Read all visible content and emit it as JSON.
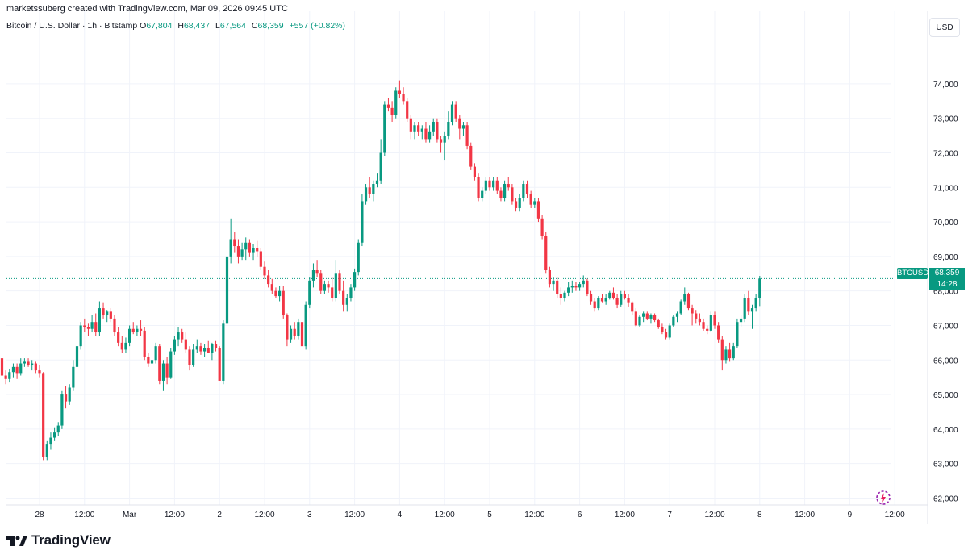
{
  "header": {
    "created_by": "marketssuberg created with TradingView.com, Mar 09, 2026 09:45 UTC"
  },
  "legend": {
    "instrument": "Bitcoin / U.S. Dollar · 1h · Bitstamp",
    "open_label": "O",
    "open": "67,804",
    "high_label": "H",
    "high": "68,437",
    "low_label": "L",
    "low": "67,564",
    "close_label": "C",
    "close": "68,359",
    "change": "+557 (+0.82%)"
  },
  "currency_button": "USD",
  "price_label": {
    "symbol": "BTCUSD",
    "price": "68,359",
    "countdown": "14:28"
  },
  "footer": {
    "brand": "TradingView"
  },
  "icons": {
    "logo": "tradingview-logo-icon",
    "replay": "replay-icon"
  },
  "colors": {
    "up": "#089981",
    "down": "#f23645",
    "grid": "#f0f3fa",
    "last_price_line": "#089981"
  },
  "chart_data": {
    "type": "candlestick",
    "ylim": [
      61800,
      75400
    ],
    "y_ticks": [
      62000,
      63000,
      64000,
      65000,
      66000,
      67000,
      68000,
      69000,
      70000,
      71000,
      72000,
      73000,
      74000
    ],
    "y_tick_labels": [
      "62,000",
      "63,000",
      "64,000",
      "65,000",
      "66,000",
      "67,000",
      "68,000",
      "69,000",
      "70,000",
      "71,000",
      "72,000",
      "73,000",
      "74,000"
    ],
    "x_ticks": [
      "28",
      "12:00",
      "Mar",
      "12:00",
      "2",
      "12:00",
      "3",
      "12:00",
      "4",
      "12:00",
      "5",
      "12:00",
      "6",
      "12:00",
      "7",
      "12:00",
      "8",
      "12:00",
      "9",
      "12:00"
    ],
    "x_tick_hours": [
      0,
      12,
      24,
      36,
      48,
      60,
      72,
      84,
      96,
      108,
      120,
      132,
      144,
      156,
      168,
      180,
      192,
      204,
      216,
      228
    ],
    "first_candle_hour": -11,
    "last_price": 68359,
    "candles": [
      [
        66300,
        66450,
        65950,
        66050
      ],
      [
        66050,
        66150,
        65450,
        65550
      ],
      [
        65550,
        65700,
        65300,
        65450
      ],
      [
        65450,
        65750,
        65350,
        65650
      ],
      [
        65650,
        65900,
        65500,
        65800
      ],
      [
        65800,
        65900,
        65450,
        65600
      ],
      [
        65600,
        66050,
        65550,
        65900
      ],
      [
        65900,
        66050,
        65800,
        65950
      ],
      [
        65950,
        66050,
        65800,
        65850
      ],
      [
        65850,
        66000,
        65700,
        65900
      ],
      [
        65900,
        65950,
        65600,
        65700
      ],
      [
        65700,
        65850,
        65500,
        65600
      ],
      [
        65600,
        65650,
        63100,
        63200
      ],
      [
        63200,
        63650,
        63100,
        63550
      ],
      [
        63550,
        63900,
        63400,
        63750
      ],
      [
        63750,
        64050,
        63650,
        63900
      ],
      [
        63900,
        64200,
        63800,
        64100
      ],
      [
        64100,
        65100,
        64000,
        65000
      ],
      [
        65000,
        65250,
        64600,
        64800
      ],
      [
        64800,
        65300,
        64700,
        65200
      ],
      [
        65200,
        66000,
        65100,
        65800
      ],
      [
        65800,
        66600,
        65700,
        66400
      ],
      [
        66400,
        67100,
        66300,
        67000
      ],
      [
        67000,
        67200,
        66800,
        66950
      ],
      [
        66950,
        67050,
        66700,
        66900
      ],
      [
        66900,
        67300,
        66800,
        67100
      ],
      [
        67100,
        67350,
        66700,
        66800
      ],
      [
        66800,
        67700,
        66700,
        67500
      ],
      [
        67500,
        67650,
        67200,
        67300
      ],
      [
        67300,
        67450,
        67100,
        67400
      ],
      [
        67400,
        67500,
        67100,
        67200
      ],
      [
        67200,
        67300,
        66700,
        66800
      ],
      [
        66800,
        66950,
        66400,
        66500
      ],
      [
        66500,
        66700,
        66200,
        66300
      ],
      [
        66300,
        66650,
        66200,
        66500
      ],
      [
        66500,
        67000,
        66400,
        66900
      ],
      [
        66900,
        67100,
        66750,
        66800
      ],
      [
        66800,
        67000,
        66700,
        66900
      ],
      [
        66900,
        67150,
        66700,
        66850
      ],
      [
        66850,
        66950,
        66000,
        66100
      ],
      [
        66100,
        66200,
        65800,
        65900
      ],
      [
        65900,
        66100,
        65700,
        66000
      ],
      [
        66000,
        66500,
        65900,
        66400
      ],
      [
        66400,
        66450,
        65300,
        65400
      ],
      [
        65400,
        66000,
        65100,
        65900
      ],
      [
        65900,
        66100,
        65300,
        65500
      ],
      [
        65500,
        66350,
        65450,
        66250
      ],
      [
        66250,
        66700,
        66150,
        66600
      ],
      [
        66600,
        66950,
        66400,
        66800
      ],
      [
        66800,
        66900,
        66500,
        66600
      ],
      [
        66600,
        66800,
        66200,
        66300
      ],
      [
        66300,
        66400,
        65700,
        65850
      ],
      [
        65850,
        66450,
        65800,
        66300
      ],
      [
        66300,
        66600,
        66200,
        66400
      ],
      [
        66400,
        66500,
        66150,
        66250
      ],
      [
        66250,
        66450,
        66100,
        66350
      ],
      [
        66350,
        66550,
        66200,
        66200
      ],
      [
        66200,
        66500,
        66000,
        66450
      ],
      [
        66450,
        66550,
        66250,
        66350
      ],
      [
        66350,
        66400,
        65500,
        65400
      ],
      [
        65400,
        67150,
        65300,
        67050
      ],
      [
        67050,
        69100,
        66900,
        69000
      ],
      [
        69000,
        70100,
        68800,
        69500
      ],
      [
        69500,
        69700,
        69100,
        69300
      ],
      [
        69300,
        69500,
        68800,
        69000
      ],
      [
        69000,
        69400,
        68900,
        69200
      ],
      [
        69200,
        69550,
        68900,
        69400
      ],
      [
        69400,
        69500,
        69000,
        69100
      ],
      [
        69100,
        69350,
        68900,
        69250
      ],
      [
        69250,
        69450,
        69000,
        69150
      ],
      [
        69150,
        69250,
        68600,
        68700
      ],
      [
        68700,
        68850,
        68350,
        68450
      ],
      [
        68450,
        68600,
        68100,
        68200
      ],
      [
        68200,
        68350,
        67900,
        68000
      ],
      [
        68000,
        68100,
        67800,
        67850
      ],
      [
        67850,
        68150,
        67700,
        68000
      ],
      [
        68000,
        68150,
        67200,
        67300
      ],
      [
        67300,
        67350,
        66400,
        66600
      ],
      [
        66600,
        67000,
        66500,
        66900
      ],
      [
        66900,
        67100,
        66600,
        66700
      ],
      [
        66700,
        67200,
        66600,
        67100
      ],
      [
        67100,
        67250,
        66300,
        66400
      ],
      [
        66400,
        67700,
        66300,
        67600
      ],
      [
        67600,
        68400,
        67500,
        68300
      ],
      [
        68300,
        68800,
        68100,
        68600
      ],
      [
        68600,
        68900,
        68400,
        68500
      ],
      [
        68500,
        68600,
        67900,
        68000
      ],
      [
        68000,
        68300,
        67900,
        68200
      ],
      [
        68200,
        68300,
        67950,
        68100
      ],
      [
        68100,
        68400,
        67700,
        67800
      ],
      [
        67800,
        68900,
        67700,
        68500
      ],
      [
        68500,
        68600,
        67900,
        68000
      ],
      [
        68000,
        68300,
        67400,
        67600
      ],
      [
        67600,
        67900,
        67400,
        67800
      ],
      [
        67800,
        68200,
        67700,
        68100
      ],
      [
        68100,
        68650,
        68000,
        68550
      ],
      [
        68550,
        69500,
        68450,
        69400
      ],
      [
        69400,
        70800,
        69300,
        70600
      ],
      [
        70600,
        71100,
        70500,
        71000
      ],
      [
        71000,
        71300,
        70700,
        70800
      ],
      [
        70800,
        71200,
        70600,
        71100
      ],
      [
        71100,
        71400,
        71000,
        71200
      ],
      [
        71200,
        72400,
        71100,
        72000
      ],
      [
        72000,
        73500,
        71900,
        73400
      ],
      [
        73400,
        73600,
        73200,
        73300
      ],
      [
        73300,
        73500,
        72900,
        73100
      ],
      [
        73100,
        73900,
        73000,
        73800
      ],
      [
        73800,
        74100,
        73600,
        73700
      ],
      [
        73700,
        73900,
        73400,
        73500
      ],
      [
        73500,
        73600,
        72900,
        73000
      ],
      [
        73000,
        73100,
        72400,
        72600
      ],
      [
        72600,
        72900,
        72400,
        72800
      ],
      [
        72800,
        72900,
        72500,
        72600
      ],
      [
        72600,
        72800,
        72400,
        72700
      ],
      [
        72700,
        72900,
        72300,
        72400
      ],
      [
        72400,
        72800,
        72300,
        72600
      ],
      [
        72600,
        73000,
        72500,
        72900
      ],
      [
        72900,
        73000,
        72300,
        72400
      ],
      [
        72400,
        72500,
        72000,
        72300
      ],
      [
        72300,
        72600,
        71800,
        72500
      ],
      [
        72500,
        73200,
        72400,
        72900
      ],
      [
        72900,
        73500,
        72800,
        73400
      ],
      [
        73400,
        73500,
        72900,
        73000
      ],
      [
        73000,
        73100,
        72400,
        72700
      ],
      [
        72700,
        72900,
        72500,
        72800
      ],
      [
        72800,
        72900,
        72100,
        72200
      ],
      [
        72200,
        72300,
        71500,
        71600
      ],
      [
        71600,
        71700,
        71200,
        71300
      ],
      [
        71300,
        71400,
        70600,
        70700
      ],
      [
        70700,
        71000,
        70600,
        70900
      ],
      [
        70900,
        71300,
        70800,
        71200
      ],
      [
        71200,
        71300,
        70900,
        71000
      ],
      [
        71000,
        71300,
        70900,
        71200
      ],
      [
        71200,
        71300,
        70800,
        70900
      ],
      [
        70900,
        71000,
        70600,
        70700
      ],
      [
        70700,
        71200,
        70600,
        71100
      ],
      [
        71100,
        71300,
        70900,
        71000
      ],
      [
        71000,
        71100,
        70500,
        70600
      ],
      [
        70600,
        70700,
        70300,
        70400
      ],
      [
        70400,
        70800,
        70300,
        70700
      ],
      [
        70700,
        71200,
        70600,
        71100
      ],
      [
        71100,
        71200,
        70700,
        70800
      ],
      [
        70800,
        70900,
        70400,
        70500
      ],
      [
        70500,
        70700,
        70400,
        70600
      ],
      [
        70600,
        70700,
        70000,
        70100
      ],
      [
        70100,
        70200,
        69500,
        69600
      ],
      [
        69600,
        69700,
        68500,
        68600
      ],
      [
        68600,
        68700,
        68100,
        68200
      ],
      [
        68200,
        68400,
        68000,
        68300
      ],
      [
        68300,
        68400,
        67800,
        67900
      ],
      [
        67900,
        68100,
        67600,
        67800
      ],
      [
        67800,
        68000,
        67700,
        67950
      ],
      [
        67950,
        68250,
        67850,
        68100
      ],
      [
        68100,
        68300,
        67950,
        68150
      ],
      [
        68150,
        68250,
        68000,
        68100
      ],
      [
        68100,
        68250,
        68000,
        68200
      ],
      [
        68200,
        68450,
        68100,
        68300
      ],
      [
        68300,
        68350,
        67850,
        67900
      ],
      [
        67900,
        68000,
        67600,
        67700
      ],
      [
        67700,
        67800,
        67400,
        67500
      ],
      [
        67500,
        67850,
        67450,
        67800
      ],
      [
        67800,
        67900,
        67650,
        67700
      ],
      [
        67700,
        67900,
        67600,
        67800
      ],
      [
        67800,
        68000,
        67750,
        67950
      ],
      [
        67950,
        68100,
        67750,
        67800
      ],
      [
        67800,
        67900,
        67500,
        67600
      ],
      [
        67600,
        68000,
        67550,
        67900
      ],
      [
        67900,
        68000,
        67750,
        67800
      ],
      [
        67800,
        67900,
        67550,
        67650
      ],
      [
        67650,
        67700,
        67300,
        67400
      ],
      [
        67400,
        67500,
        66950,
        67000
      ],
      [
        67000,
        67300,
        66950,
        67250
      ],
      [
        67250,
        67400,
        67100,
        67350
      ],
      [
        67350,
        67400,
        67150,
        67200
      ],
      [
        67200,
        67350,
        67050,
        67300
      ],
      [
        67300,
        67350,
        67100,
        67150
      ],
      [
        67150,
        67200,
        66900,
        66950
      ],
      [
        66950,
        67050,
        66750,
        66800
      ],
      [
        66800,
        66900,
        66600,
        66650
      ],
      [
        66650,
        67050,
        66600,
        67000
      ],
      [
        67000,
        67300,
        66950,
        67250
      ],
      [
        67250,
        67400,
        67100,
        67350
      ],
      [
        67350,
        67750,
        67300,
        67700
      ],
      [
        67700,
        68100,
        67600,
        67900
      ],
      [
        67900,
        67950,
        67450,
        67500
      ],
      [
        67500,
        67600,
        67000,
        67350
      ],
      [
        67350,
        67450,
        67050,
        67200
      ],
      [
        67200,
        67350,
        67000,
        67100
      ],
      [
        67100,
        67200,
        66850,
        66900
      ],
      [
        66900,
        67000,
        66750,
        66850
      ],
      [
        66850,
        67400,
        66800,
        67300
      ],
      [
        67300,
        67400,
        66900,
        67000
      ],
      [
        67000,
        67100,
        66500,
        66600
      ],
      [
        66600,
        66700,
        65700,
        66000
      ],
      [
        66000,
        66400,
        65900,
        66300
      ],
      [
        66300,
        66500,
        65950,
        66050
      ],
      [
        66050,
        66500,
        66000,
        66400
      ],
      [
        66400,
        67200,
        66350,
        67100
      ],
      [
        67100,
        67300,
        66950,
        67200
      ],
      [
        67200,
        67900,
        67100,
        67800
      ],
      [
        67800,
        68000,
        67300,
        67400
      ],
      [
        67400,
        67600,
        66900,
        67500
      ],
      [
        67500,
        67900,
        67400,
        67804
      ],
      [
        67804,
        68437,
        67564,
        68359
      ]
    ]
  }
}
